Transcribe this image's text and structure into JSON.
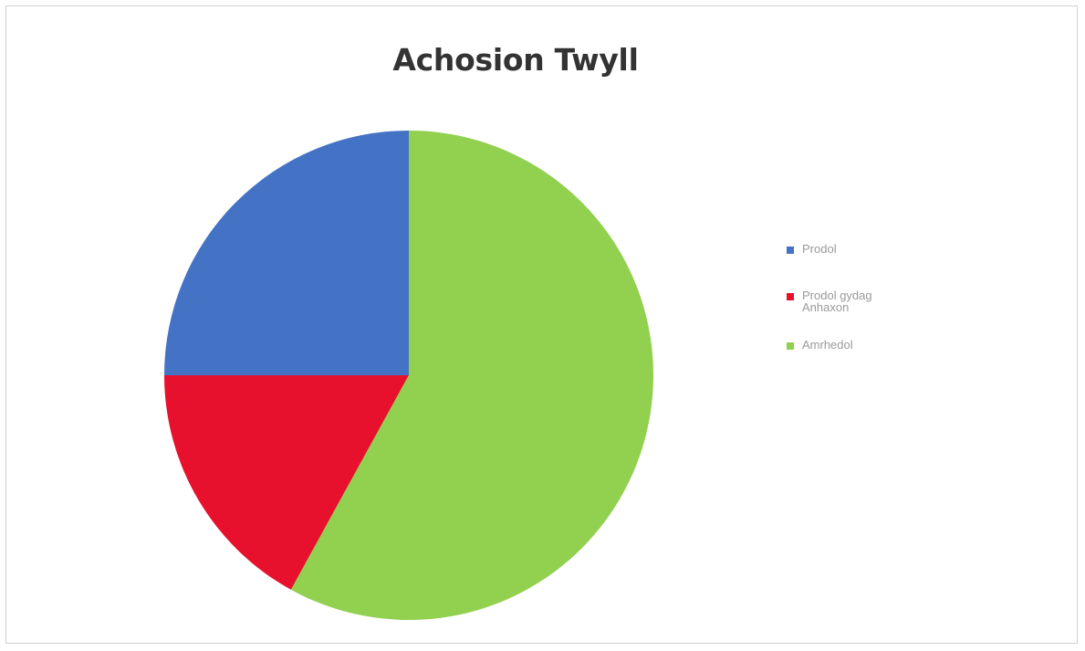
{
  "chart_data": {
    "type": "pie",
    "title": "Achosion Twyll",
    "categories": [
      "Prodol",
      "Prodol gydag Anhaxon",
      "Amrhedol"
    ],
    "values": [
      25,
      17,
      58
    ],
    "colors": [
      "#4472c4",
      "#e8112d",
      "#92d050"
    ],
    "start_angle_deg": 0,
    "direction": "counterclockwise",
    "legend_position": "right",
    "data_labels": false
  }
}
